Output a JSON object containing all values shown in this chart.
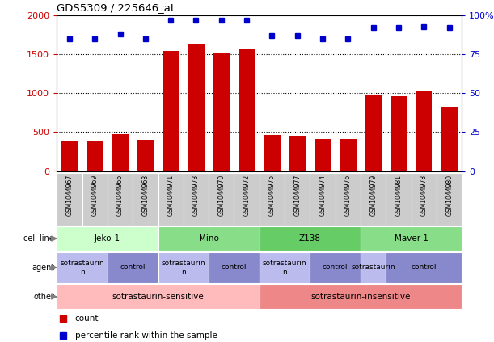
{
  "title": "GDS5309 / 225646_at",
  "samples": [
    "GSM1044967",
    "GSM1044969",
    "GSM1044966",
    "GSM1044968",
    "GSM1044971",
    "GSM1044973",
    "GSM1044970",
    "GSM1044972",
    "GSM1044975",
    "GSM1044977",
    "GSM1044974",
    "GSM1044976",
    "GSM1044979",
    "GSM1044981",
    "GSM1044978",
    "GSM1044980"
  ],
  "counts": [
    380,
    375,
    470,
    400,
    1545,
    1630,
    1515,
    1565,
    460,
    455,
    415,
    415,
    985,
    960,
    1030,
    830
  ],
  "percentiles": [
    85,
    85,
    88,
    85,
    97,
    97,
    97,
    97,
    87,
    87,
    85,
    85,
    92,
    92,
    93,
    92
  ],
  "bar_color": "#cc0000",
  "dot_color": "#0000cc",
  "ylim_left": [
    0,
    2000
  ],
  "ylim_right": [
    0,
    100
  ],
  "yticks_left": [
    0,
    500,
    1000,
    1500,
    2000
  ],
  "yticks_right": [
    0,
    25,
    50,
    75,
    100
  ],
  "cell_lines": [
    {
      "label": "Jeko-1",
      "start": 0,
      "end": 4,
      "color": "#ccffcc"
    },
    {
      "label": "Mino",
      "start": 4,
      "end": 8,
      "color": "#88dd88"
    },
    {
      "label": "Z138",
      "start": 8,
      "end": 12,
      "color": "#66cc66"
    },
    {
      "label": "Maver-1",
      "start": 12,
      "end": 16,
      "color": "#88dd88"
    }
  ],
  "agents": [
    {
      "label": "sotrastaurin\nn",
      "start": 0,
      "end": 2,
      "color": "#bbbbee"
    },
    {
      "label": "control",
      "start": 2,
      "end": 4,
      "color": "#8888cc"
    },
    {
      "label": "sotrastaurin\nn",
      "start": 4,
      "end": 6,
      "color": "#bbbbee"
    },
    {
      "label": "control",
      "start": 6,
      "end": 8,
      "color": "#8888cc"
    },
    {
      "label": "sotrastaurin\nn",
      "start": 8,
      "end": 10,
      "color": "#bbbbee"
    },
    {
      "label": "control",
      "start": 10,
      "end": 12,
      "color": "#8888cc"
    },
    {
      "label": "sotrastaurin",
      "start": 12,
      "end": 13,
      "color": "#bbbbee"
    },
    {
      "label": "control",
      "start": 13,
      "end": 16,
      "color": "#8888cc"
    }
  ],
  "others": [
    {
      "label": "sotrastaurin-sensitive",
      "start": 0,
      "end": 8,
      "color": "#ffbbbb"
    },
    {
      "label": "sotrastaurin-insensitive",
      "start": 8,
      "end": 16,
      "color": "#ee8888"
    }
  ],
  "row_labels": [
    "cell line",
    "agent",
    "other"
  ],
  "grid_yticks": [
    500,
    1000,
    1500
  ],
  "tick_label_bg": "#cccccc",
  "ax_spine_color": "#000000"
}
